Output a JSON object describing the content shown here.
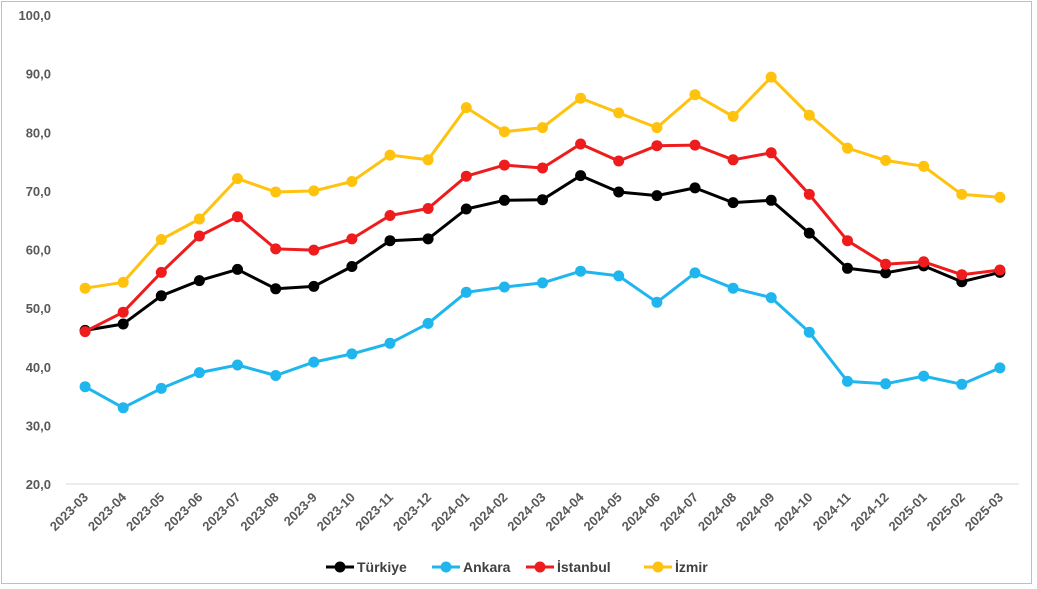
{
  "chart_data": {
    "type": "line",
    "title": "",
    "xlabel": "",
    "ylabel": "",
    "ylim": [
      20,
      100
    ],
    "yticks": [
      "20,0",
      "30,0",
      "40,0",
      "50,0",
      "60,0",
      "70,0",
      "80,0",
      "90,0",
      "100,0"
    ],
    "ytick_values": [
      20,
      30,
      40,
      50,
      60,
      70,
      80,
      90,
      100
    ],
    "grid": false,
    "legend_position": "bottom",
    "categories": [
      "2023-03",
      "2023-04",
      "2023-05",
      "2023-06",
      "2023-07",
      "2023-08",
      "2023-9",
      "2023-10",
      "2023-11",
      "2023-12",
      "2024-01",
      "2024-02",
      "2024-03",
      "2024-04",
      "2024-05",
      "2024-06",
      "2024-07",
      "2024-08",
      "2024-09",
      "2024-10",
      "2024-11",
      "2024-12",
      "2025-01",
      "2025-02",
      "2025-03"
    ],
    "series": [
      {
        "name": "Türkiye",
        "color": "#000000",
        "values": [
          46.2,
          47.3,
          52.1,
          54.7,
          56.6,
          53.3,
          53.7,
          57.1,
          61.5,
          61.8,
          66.9,
          68.4,
          68.5,
          72.6,
          69.8,
          69.2,
          70.5,
          68.0,
          68.4,
          62.8,
          56.8,
          56.0,
          57.2,
          54.5,
          56.1
        ]
      },
      {
        "name": "Ankara",
        "color": "#1fb6ee",
        "values": [
          36.6,
          33.0,
          36.3,
          39.0,
          40.3,
          38.5,
          40.8,
          42.2,
          44.0,
          47.4,
          52.7,
          53.6,
          54.3,
          56.3,
          55.5,
          51.0,
          56.0,
          53.4,
          51.8,
          45.9,
          37.5,
          37.1,
          38.4,
          37.0,
          39.8
        ]
      },
      {
        "name": "İstanbul",
        "color": "#ee1c1c",
        "values": [
          46.0,
          49.3,
          56.1,
          62.3,
          65.6,
          60.1,
          59.9,
          61.8,
          65.8,
          67.0,
          72.5,
          74.4,
          73.9,
          78.0,
          75.1,
          77.7,
          77.8,
          75.3,
          76.5,
          69.4,
          61.5,
          57.5,
          57.9,
          55.7,
          56.5
        ]
      },
      {
        "name": "İzmir",
        "color": "#ffc20e",
        "values": [
          53.4,
          54.4,
          61.7,
          65.2,
          72.1,
          69.8,
          70.0,
          71.6,
          76.1,
          75.3,
          84.2,
          80.1,
          80.8,
          85.8,
          83.3,
          80.8,
          86.4,
          82.7,
          89.4,
          82.9,
          77.3,
          75.2,
          74.2,
          69.4,
          68.9
        ]
      }
    ]
  }
}
